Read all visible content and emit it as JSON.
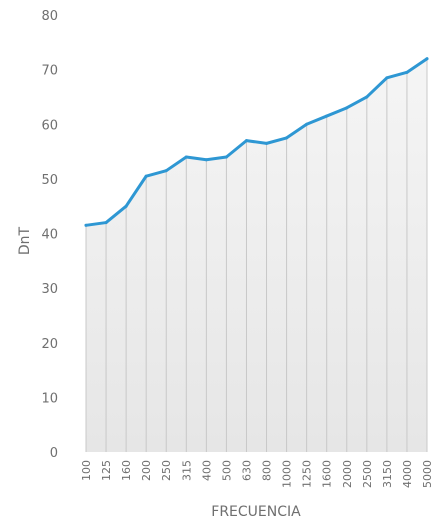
{
  "chart_data": {
    "type": "area",
    "xlabel": "FRECUENCIA",
    "ylabel": "DnT",
    "ylim": [
      0,
      80
    ],
    "yticks": [
      0,
      10,
      20,
      30,
      40,
      50,
      60,
      70,
      80
    ],
    "categories": [
      "100",
      "125",
      "160",
      "200",
      "250",
      "315",
      "400",
      "500",
      "630",
      "800",
      "1000",
      "1250",
      "1600",
      "2000",
      "2500",
      "3150",
      "4000",
      "5000"
    ],
    "series": [
      {
        "values": [
          41.5,
          42,
          45,
          50.5,
          51.5,
          54,
          53.5,
          54,
          57,
          56.5,
          57.5,
          60,
          61.5,
          63,
          65,
          68.5,
          69.5,
          72
        ]
      }
    ],
    "grid": "vertical",
    "colors": {
      "line": "#2e97d3",
      "fill_top": "#f3f3f3",
      "fill_bottom": "#e7e7e7",
      "grid": "#c8c8c8"
    }
  }
}
